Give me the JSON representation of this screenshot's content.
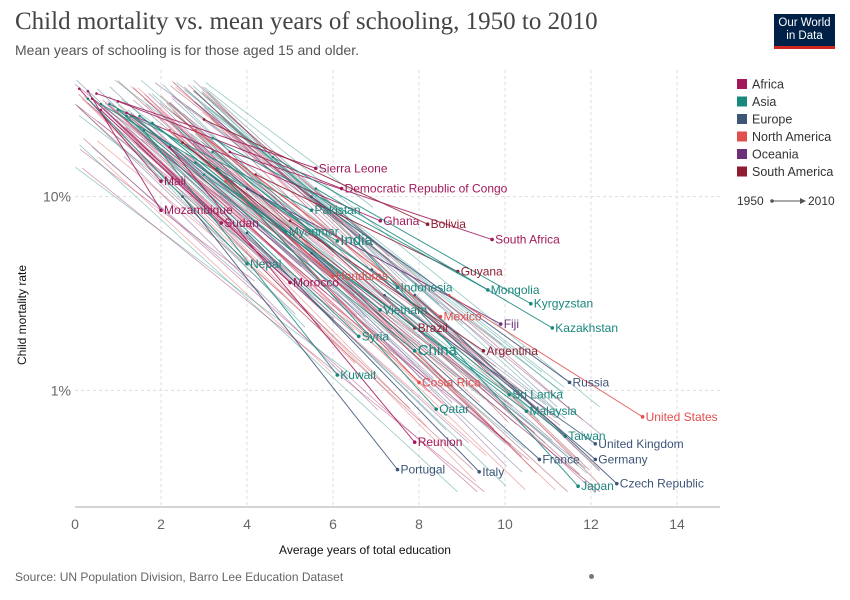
{
  "header": {
    "title": "Child mortality vs. mean years of schooling, 1950 to 2010",
    "subtitle": "Mean years of schooling is for those aged 15 and older.",
    "logo_line1": "Our World",
    "logo_line2": "in Data"
  },
  "footer": {
    "source": "Source: UN Population Division, Barro Lee Education Dataset"
  },
  "colors": {
    "Africa": "#a2195b",
    "Asia": "#18887d",
    "Europe": "#3d5577",
    "North America": "#e04e4e",
    "Oceania": "#6b3078",
    "South America": "#8f1d32"
  },
  "legend": {
    "regions": [
      "Africa",
      "Asia",
      "Europe",
      "North America",
      "Oceania",
      "South America"
    ],
    "time_start": "1950",
    "time_end": "2010"
  },
  "chart_data": {
    "type": "scatter",
    "xlabel": "Average years of total education",
    "ylabel": "Child mortality rate",
    "xlim": [
      0,
      15
    ],
    "ylim": [
      0.25,
      45
    ],
    "y_scale": "log",
    "x_ticks": [
      "0",
      "2",
      "4",
      "6",
      "8",
      "10",
      "12",
      "14"
    ],
    "y_ticks": [
      {
        "value": 10,
        "label": "10%"
      },
      {
        "value": 1,
        "label": "1%"
      }
    ],
    "grid": true,
    "legend_position": "right",
    "series": [
      {
        "name": "Sierra Leone",
        "region": "Africa",
        "x": [
          0.5,
          5.6
        ],
        "y": [
          34,
          14
        ]
      },
      {
        "name": "Democratic Republic of Congo",
        "region": "Africa",
        "x": [
          1.0,
          6.2
        ],
        "y": [
          31,
          11
        ]
      },
      {
        "name": "Mali",
        "region": "Africa",
        "x": [
          0.1,
          2.0
        ],
        "y": [
          36,
          12
        ]
      },
      {
        "name": "Mozambique",
        "region": "Africa",
        "x": [
          0.3,
          2.0
        ],
        "y": [
          35,
          8.5
        ]
      },
      {
        "name": "Sudan",
        "region": "Africa",
        "x": [
          0.6,
          3.4
        ],
        "y": [
          28,
          7.3
        ]
      },
      {
        "name": "Pakistan",
        "region": "Asia",
        "x": [
          0.8,
          5.5
        ],
        "y": [
          30,
          8.5
        ]
      },
      {
        "name": "Ghana",
        "region": "Africa",
        "x": [
          1.2,
          7.1
        ],
        "y": [
          27,
          7.5
        ]
      },
      {
        "name": "Bolivia",
        "region": "South America",
        "x": [
          3.0,
          8.2
        ],
        "y": [
          25,
          7.2
        ]
      },
      {
        "name": "South Africa",
        "region": "Africa",
        "x": [
          3.6,
          9.7
        ],
        "y": [
          17,
          6.0
        ]
      },
      {
        "name": "Myanmar",
        "region": "Asia",
        "x": [
          1.3,
          4.9
        ],
        "y": [
          26,
          6.6
        ]
      },
      {
        "name": "India",
        "region": "Asia",
        "x": [
          0.6,
          6.1
        ],
        "y": [
          30,
          5.9
        ]
      },
      {
        "name": "Nepal",
        "region": "Asia",
        "x": [
          0.3,
          4.0
        ],
        "y": [
          32,
          4.5
        ]
      },
      {
        "name": "Guyana",
        "region": "South America",
        "x": [
          4.2,
          8.9
        ],
        "y": [
          13,
          4.1
        ]
      },
      {
        "name": "Honduras",
        "region": "North America",
        "x": [
          2.2,
          6.0
        ],
        "y": [
          22,
          3.9
        ]
      },
      {
        "name": "Morocco",
        "region": "Africa",
        "x": [
          0.4,
          5.0
        ],
        "y": [
          32,
          3.6
        ]
      },
      {
        "name": "Indonesia",
        "region": "Asia",
        "x": [
          1.5,
          7.5
        ],
        "y": [
          26,
          3.4
        ]
      },
      {
        "name": "Mongolia",
        "region": "Asia",
        "x": [
          3.2,
          9.6
        ],
        "y": [
          20,
          3.3
        ]
      },
      {
        "name": "Kyrgyzstan",
        "region": "Asia",
        "x": [
          4.6,
          10.6
        ],
        "y": [
          16,
          2.8
        ]
      },
      {
        "name": "Vietnam",
        "region": "Asia",
        "x": [
          1.8,
          7.1
        ],
        "y": [
          24,
          2.6
        ]
      },
      {
        "name": "Mexico",
        "region": "North America",
        "x": [
          2.8,
          8.5
        ],
        "y": [
          22,
          2.4
        ]
      },
      {
        "name": "Fiji",
        "region": "Oceania",
        "x": [
          4.0,
          9.9
        ],
        "y": [
          11,
          2.2
        ]
      },
      {
        "name": "Kazakhstan",
        "region": "Asia",
        "x": [
          5.6,
          11.1
        ],
        "y": [
          11,
          2.1
        ]
      },
      {
        "name": "Brazil",
        "region": "South America",
        "x": [
          2.5,
          7.9
        ],
        "y": [
          19,
          2.1
        ]
      },
      {
        "name": "Syria",
        "region": "Asia",
        "x": [
          1.2,
          6.6
        ],
        "y": [
          26,
          1.9
        ]
      },
      {
        "name": "China",
        "region": "Asia",
        "x": [
          1.0,
          7.9
        ],
        "y": [
          28,
          1.6
        ]
      },
      {
        "name": "Argentina",
        "region": "South America",
        "x": [
          5.0,
          9.5
        ],
        "y": [
          7.5,
          1.6
        ]
      },
      {
        "name": "Kuwait",
        "region": "Asia",
        "x": [
          1.6,
          6.1
        ],
        "y": [
          22,
          1.2
        ]
      },
      {
        "name": "Costa Rica",
        "region": "North America",
        "x": [
          3.5,
          8.0
        ],
        "y": [
          12,
          1.1
        ]
      },
      {
        "name": "Russia",
        "region": "Europe",
        "x": [
          5.5,
          11.5
        ],
        "y": [
          10,
          1.1
        ]
      },
      {
        "name": "Sri Lanka",
        "region": "Asia",
        "x": [
          3.0,
          10.1
        ],
        "y": [
          13,
          0.95
        ]
      },
      {
        "name": "Qatar",
        "region": "Asia",
        "x": [
          3.3,
          8.4
        ],
        "y": [
          14,
          0.8
        ]
      },
      {
        "name": "Malaysia",
        "region": "Asia",
        "x": [
          2.8,
          10.5
        ],
        "y": [
          15,
          0.78
        ]
      },
      {
        "name": "United States",
        "region": "North America",
        "x": [
          8.7,
          13.2
        ],
        "y": [
          3.1,
          0.73
        ]
      },
      {
        "name": "Taiwan",
        "region": "Asia",
        "x": [
          3.2,
          11.4
        ],
        "y": [
          17,
          0.58
        ]
      },
      {
        "name": "Reunion",
        "region": "Africa",
        "x": [
          2.2,
          7.9
        ],
        "y": [
          18,
          0.54
        ]
      },
      {
        "name": "United Kingdom",
        "region": "Europe",
        "x": [
          7.2,
          12.1
        ],
        "y": [
          3.1,
          0.53
        ]
      },
      {
        "name": "France",
        "region": "Europe",
        "x": [
          5.5,
          10.8
        ],
        "y": [
          5.1,
          0.44
        ]
      },
      {
        "name": "Germany",
        "region": "Europe",
        "x": [
          6.9,
          12.1
        ],
        "y": [
          4.2,
          0.44
        ]
      },
      {
        "name": "Portugal",
        "region": "Europe",
        "x": [
          2.5,
          7.5
        ],
        "y": [
          10,
          0.39
        ]
      },
      {
        "name": "Italy",
        "region": "Europe",
        "x": [
          4.0,
          9.4
        ],
        "y": [
          6.5,
          0.38
        ]
      },
      {
        "name": "Japan",
        "region": "Asia",
        "x": [
          6.5,
          11.7
        ],
        "y": [
          6.0,
          0.32
        ]
      },
      {
        "name": "Czech Republic",
        "region": "Europe",
        "x": [
          7.9,
          12.6
        ],
        "y": [
          3.1,
          0.33
        ]
      }
    ]
  }
}
